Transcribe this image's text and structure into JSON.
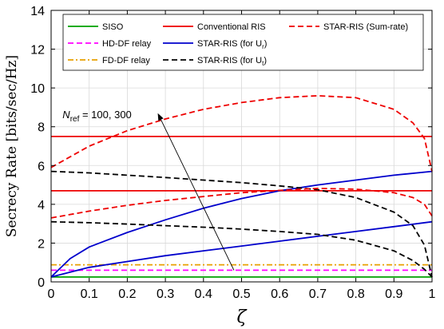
{
  "chart_data": {
    "type": "line",
    "xlabel": "ζ",
    "ylabel": "Secrecy Rate [bits/sec/Hz]",
    "xlim": [
      0,
      1
    ],
    "ylim": [
      0,
      14
    ],
    "xticks": [
      "0",
      "0.1",
      "0.2",
      "0.3",
      "0.4",
      "0.5",
      "0.6",
      "0.7",
      "0.8",
      "0.9",
      "1"
    ],
    "yticks": [
      "0",
      "2",
      "4",
      "6",
      "8",
      "10",
      "12",
      "14"
    ],
    "grid": true,
    "legend_position": "top",
    "series": [
      {
        "name": "SISO",
        "color": "#00a000",
        "dash": "solid",
        "x": [
          0,
          1
        ],
        "y": [
          0.25,
          0.25
        ]
      },
      {
        "name": "HD-DF relay",
        "color": "#ff00ff",
        "dash": "dash",
        "x": [
          0,
          1
        ],
        "y": [
          0.6,
          0.6
        ]
      },
      {
        "name": "FD-DF relay",
        "color": "#e8a000",
        "dash": "dashdot",
        "x": [
          0,
          1
        ],
        "y": [
          0.88,
          0.88
        ]
      },
      {
        "name": "Conventional RIS",
        "color": "#ee0000",
        "dash": "solid",
        "x": [
          0,
          1
        ],
        "y": [
          7.5,
          7.5
        ]
      },
      {
        "name": "Conventional RIS",
        "color": "#ee0000",
        "dash": "solid",
        "legend": false,
        "x": [
          0,
          1
        ],
        "y": [
          4.7,
          4.7
        ]
      },
      {
        "name": "STAR-RIS (for U_r)",
        "color": "#0000cc",
        "dash": "solid",
        "x": [
          0,
          0.05,
          0.1,
          0.2,
          0.3,
          0.4,
          0.5,
          0.6,
          0.7,
          0.8,
          0.9,
          1.0
        ],
        "y": [
          0.25,
          1.2,
          1.8,
          2.55,
          3.2,
          3.8,
          4.3,
          4.7,
          5.0,
          5.25,
          5.5,
          5.7
        ]
      },
      {
        "name": "STAR-RIS (for U_r)",
        "color": "#0000cc",
        "dash": "solid",
        "legend": false,
        "x": [
          0,
          0.1,
          0.2,
          0.3,
          0.4,
          0.5,
          0.6,
          0.7,
          0.8,
          0.9,
          1.0
        ],
        "y": [
          0.25,
          0.75,
          1.05,
          1.35,
          1.6,
          1.85,
          2.1,
          2.35,
          2.6,
          2.85,
          3.1
        ]
      },
      {
        "name": "STAR-RIS (for U_t)",
        "color": "#000000",
        "dash": "dash",
        "x": [
          0,
          0.1,
          0.2,
          0.3,
          0.4,
          0.5,
          0.6,
          0.7,
          0.8,
          0.9,
          0.95,
          0.98,
          1.0
        ],
        "y": [
          5.7,
          5.62,
          5.5,
          5.38,
          5.25,
          5.12,
          4.95,
          4.75,
          4.35,
          3.6,
          2.9,
          1.9,
          0.25
        ]
      },
      {
        "name": "STAR-RIS (for U_t)",
        "color": "#000000",
        "dash": "dash",
        "legend": false,
        "x": [
          0,
          0.1,
          0.2,
          0.3,
          0.4,
          0.5,
          0.6,
          0.7,
          0.8,
          0.9,
          0.95,
          0.98,
          1.0
        ],
        "y": [
          3.1,
          3.05,
          2.98,
          2.9,
          2.82,
          2.72,
          2.6,
          2.45,
          2.15,
          1.6,
          1.1,
          0.65,
          0.25
        ]
      },
      {
        "name": "STAR-RIS (Sum-rate)",
        "color": "#ee0000",
        "dash": "dash",
        "x": [
          0,
          0.1,
          0.2,
          0.3,
          0.4,
          0.5,
          0.6,
          0.7,
          0.8,
          0.9,
          0.95,
          0.98,
          1.0
        ],
        "y": [
          5.9,
          7.0,
          7.8,
          8.4,
          8.9,
          9.25,
          9.5,
          9.6,
          9.5,
          8.9,
          8.2,
          7.4,
          5.7
        ]
      },
      {
        "name": "STAR-RIS (Sum-rate)",
        "color": "#ee0000",
        "dash": "dash",
        "legend": false,
        "x": [
          0,
          0.1,
          0.2,
          0.3,
          0.4,
          0.5,
          0.6,
          0.7,
          0.8,
          0.9,
          0.95,
          0.98,
          1.0
        ],
        "y": [
          3.3,
          3.65,
          3.95,
          4.2,
          4.4,
          4.6,
          4.72,
          4.82,
          4.78,
          4.6,
          4.35,
          4.0,
          3.4
        ]
      }
    ],
    "legend": {
      "columns": [
        [
          "SISO",
          "HD-DF relay",
          "FD-DF relay"
        ],
        [
          "Conventional RIS",
          "STAR-RIS (for U_r)",
          "STAR-RIS (for U_t)"
        ],
        [
          "STAR-RIS (Sum-rate)"
        ]
      ]
    },
    "annotation": {
      "text_n": "N",
      "text_sub": "ref",
      "text_rest": " = 100, 300",
      "arrow_from": [
        0.48,
        0.6
      ],
      "arrow_to": [
        0.28,
        8.7
      ],
      "text_at": [
        0.03,
        8.45
      ]
    }
  }
}
